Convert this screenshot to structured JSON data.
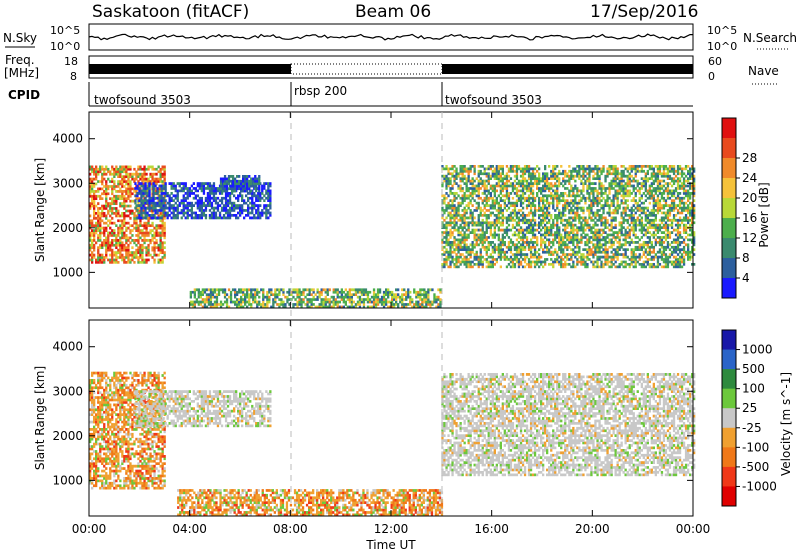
{
  "header": {
    "site": "Saskatoon (fitACF)",
    "beam": "Beam 06",
    "date": "17/Sep/2016"
  },
  "top_panels": {
    "nsky_label": "N.Sky",
    "nsky_ticks": [
      "10^5",
      "10^0"
    ],
    "nsearch_label": "N.Search",
    "nsearch_ticks": [
      "10^5",
      "10^0"
    ],
    "freq_label_1": "Freq.",
    "freq_label_2": "[MHz]",
    "freq_ticks": [
      "18",
      "8"
    ],
    "nave_label": "Nave",
    "nave_ticks": [
      "60",
      "0"
    ],
    "cpid_label": "CPID",
    "cpid_segments": [
      {
        "name": "twofsound 3503",
        "start": 0,
        "end": 8
      },
      {
        "name": "rbsp 200",
        "start": 8,
        "end": 14
      },
      {
        "name": "twofsound 3503",
        "start": 14,
        "end": 24
      }
    ]
  },
  "chart_data": [
    {
      "type": "heatmap",
      "title": "",
      "xlabel": "Time UT",
      "ylabel": "Slant Range [km]",
      "xlim": [
        0,
        24
      ],
      "ylim": [
        200,
        4600
      ],
      "x_ticks": [
        "00:00",
        "04:00",
        "08:00",
        "12:00",
        "16:00",
        "20:00",
        "00:00"
      ],
      "y_ticks": [
        1000,
        2000,
        3000,
        4000
      ],
      "colorbar": {
        "label": "Power [dB]",
        "ticks": [
          "4",
          "8",
          "12",
          "16",
          "20",
          "24",
          "28"
        ],
        "colors": [
          "#1a1aff",
          "#2c5f9e",
          "#3a8a6e",
          "#4cae4c",
          "#b8d838",
          "#f5c23a",
          "#f08a2a",
          "#e84a1e",
          "#e01010"
        ]
      },
      "regions": [
        {
          "t0": 0.0,
          "t1": 3.0,
          "r0": 1200,
          "r1": 3400,
          "level": "high"
        },
        {
          "t0": 1.8,
          "t1": 7.2,
          "r0": 2200,
          "r1": 3000,
          "level": "low"
        },
        {
          "t0": 5.2,
          "t1": 6.8,
          "r0": 2800,
          "r1": 3150,
          "level": "low"
        },
        {
          "t0": 14.0,
          "t1": 24.0,
          "r0": 1100,
          "r1": 3400,
          "level": "medium"
        },
        {
          "t0": 4.0,
          "t1": 14.0,
          "r0": 200,
          "r1": 600,
          "level": "medium"
        }
      ]
    },
    {
      "type": "heatmap",
      "title": "",
      "xlabel": "Time UT",
      "ylabel": "Slant Range [km]",
      "xlim": [
        0,
        24
      ],
      "ylim": [
        200,
        4600
      ],
      "x_ticks": [
        "00:00",
        "04:00",
        "08:00",
        "12:00",
        "16:00",
        "20:00",
        "00:00"
      ],
      "y_ticks": [
        1000,
        2000,
        3000,
        4000
      ],
      "colorbar": {
        "label": "Velocity [m s^-1]",
        "ticks": [
          "1000",
          "500",
          "100",
          "25",
          "-25",
          "-100",
          "-500",
          "-1000"
        ],
        "colors": [
          "#1818a8",
          "#2a64c8",
          "#2e8a3e",
          "#6cc83c",
          "#c8c8c8",
          "#f0a030",
          "#f07818",
          "#f03818",
          "#e00000"
        ]
      },
      "regions": [
        {
          "t0": 0.0,
          "t1": 3.0,
          "r0": 800,
          "r1": 3400,
          "level": "negative"
        },
        {
          "t0": 1.8,
          "t1": 7.2,
          "r0": 2200,
          "r1": 3000,
          "level": "zero"
        },
        {
          "t0": 14.0,
          "t1": 24.0,
          "r0": 1100,
          "r1": 3400,
          "level": "zero"
        },
        {
          "t0": 3.5,
          "t1": 14.0,
          "r0": 200,
          "r1": 800,
          "level": "negative"
        }
      ]
    }
  ]
}
